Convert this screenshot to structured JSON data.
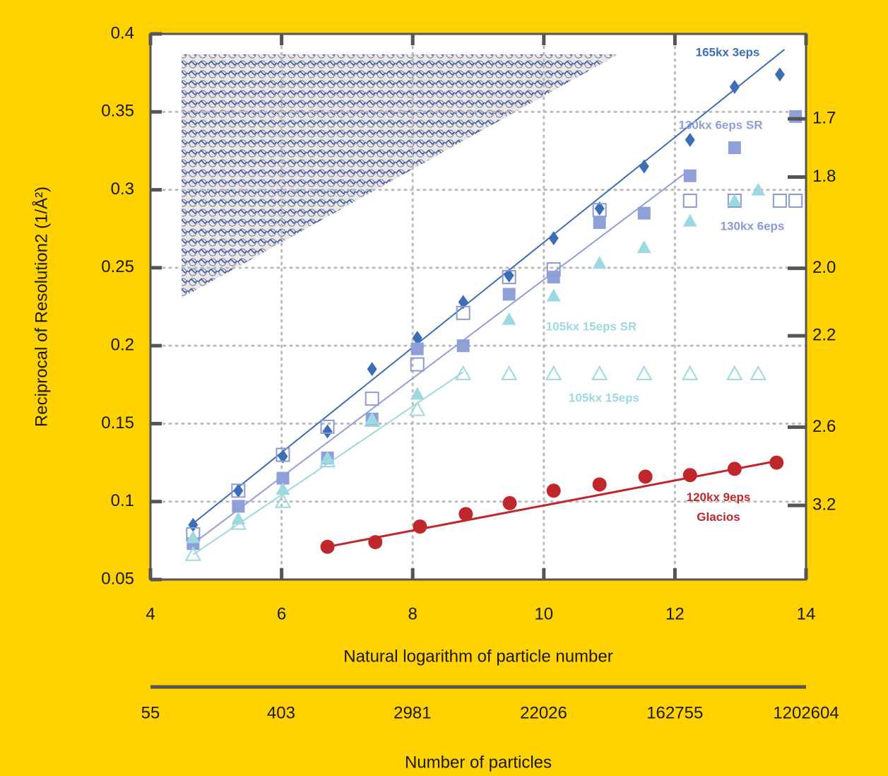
{
  "chart_data": {
    "type": "scatter",
    "background": "#ffd200",
    "x_label": "Natural logarithm of particle number",
    "y_label": "Reciprocal of Resolution2 (1/Å²)",
    "x2_label": "Number of particles",
    "xlim": [
      4,
      14
    ],
    "xticks": [
      4,
      6,
      8,
      10,
      12,
      14
    ],
    "ylim": [
      0.05,
      0.4
    ],
    "yticks": [
      0.05,
      0.1,
      0.15,
      0.2,
      0.25,
      0.3,
      0.35,
      0.4
    ],
    "y2lim": [
      4.47,
      1.58
    ],
    "y2scale": "inverse-square",
    "y2ticks": [
      3.2,
      2.6,
      2.2,
      {
        "value": 2,
        "label": "2.0"
      },
      1.8,
      1.7
    ],
    "x2lim": [
      55,
      1202604
    ],
    "x2scale": "log",
    "x2ticks": [
      55,
      403,
      2981,
      22026,
      162755,
      1202604
    ],
    "grid": true,
    "series": [
      {
        "name": "165kx 3eps",
        "color": "#3d6db5",
        "marker": "diamond",
        "filled": true,
        "x": [
          4.65,
          5.34,
          6.02,
          6.7,
          7.38,
          8.07,
          8.77,
          9.47,
          10.15,
          10.85,
          11.53,
          12.23,
          12.91,
          13.6
        ],
        "values": [
          0.085,
          0.107,
          0.129,
          0.145,
          0.185,
          0.205,
          0.228,
          0.245,
          0.269,
          0.288,
          0.315,
          0.332,
          0.366,
          0.374
        ],
        "fit": {
          "x": [
            4.65,
            13.67
          ],
          "y": [
            0.086,
            0.39
          ]
        }
      },
      {
        "name": "130kx 6eps SR",
        "color": "#8f9fd8",
        "marker": "square",
        "filled": true,
        "x": [
          4.65,
          5.34,
          6.02,
          6.7,
          7.38,
          8.07,
          8.77,
          9.47,
          10.15,
          10.85,
          11.53,
          12.23,
          12.91,
          13.84
        ],
        "values": [
          0.073,
          0.097,
          0.115,
          0.128,
          0.153,
          0.198,
          0.2,
          0.233,
          0.244,
          0.279,
          0.285,
          0.309,
          0.327,
          0.347
        ],
        "fit": {
          "x": [
            4.65,
            12.23
          ],
          "y": [
            0.073,
            0.313
          ]
        }
      },
      {
        "name": "130kx 6eps",
        "color": "#8a9ad6",
        "marker": "square",
        "filled": false,
        "x": [
          4.65,
          5.34,
          6.02,
          6.7,
          7.38,
          8.07,
          8.77,
          9.47,
          10.15,
          10.85,
          12.23,
          12.91,
          13.6,
          13.84
        ],
        "values": [
          0.079,
          0.107,
          0.13,
          0.148,
          0.166,
          0.188,
          0.221,
          0.244,
          0.249,
          0.287,
          0.293,
          0.293,
          0.293,
          0.293
        ]
      },
      {
        "name": "105kx 15eps SR",
        "color": "#9ed8e0",
        "marker": "triangle",
        "filled": true,
        "x": [
          4.65,
          5.34,
          6.02,
          6.7,
          7.38,
          8.07,
          9.47,
          10.15,
          10.85,
          11.53,
          12.23,
          12.91,
          13.27
        ],
        "values": [
          0.077,
          0.089,
          0.108,
          0.128,
          0.153,
          0.169,
          0.217,
          0.232,
          0.253,
          0.263,
          0.28,
          0.293,
          0.3
        ]
      },
      {
        "name": "105kx 15eps",
        "color": "#9ed8e0",
        "marker": "triangle",
        "filled": false,
        "x": [
          4.65,
          5.34,
          6.02,
          6.7,
          7.38,
          8.07,
          8.77,
          9.47,
          10.15,
          10.85,
          11.53,
          12.23,
          12.91,
          13.27
        ],
        "values": [
          0.066,
          0.086,
          0.1,
          0.126,
          0.152,
          0.159,
          0.182,
          0.182,
          0.182,
          0.182,
          0.182,
          0.182,
          0.182,
          0.182
        ],
        "fit": {
          "x": [
            4.65,
            8.77
          ],
          "y": [
            0.066,
            0.183
          ]
        }
      },
      {
        "name": "120kx 9eps Glacios",
        "color": "#c0272d",
        "marker": "circle",
        "filled": true,
        "x": [
          6.7,
          7.43,
          8.11,
          8.81,
          9.48,
          10.15,
          10.85,
          11.55,
          12.23,
          12.91,
          13.55
        ],
        "values": [
          0.071,
          0.074,
          0.084,
          0.092,
          0.099,
          0.107,
          0.111,
          0.116,
          0.117,
          0.121,
          0.125
        ],
        "fit": {
          "x": [
            6.7,
            13.55
          ],
          "y": [
            0.071,
            0.126
          ]
        }
      }
    ]
  }
}
